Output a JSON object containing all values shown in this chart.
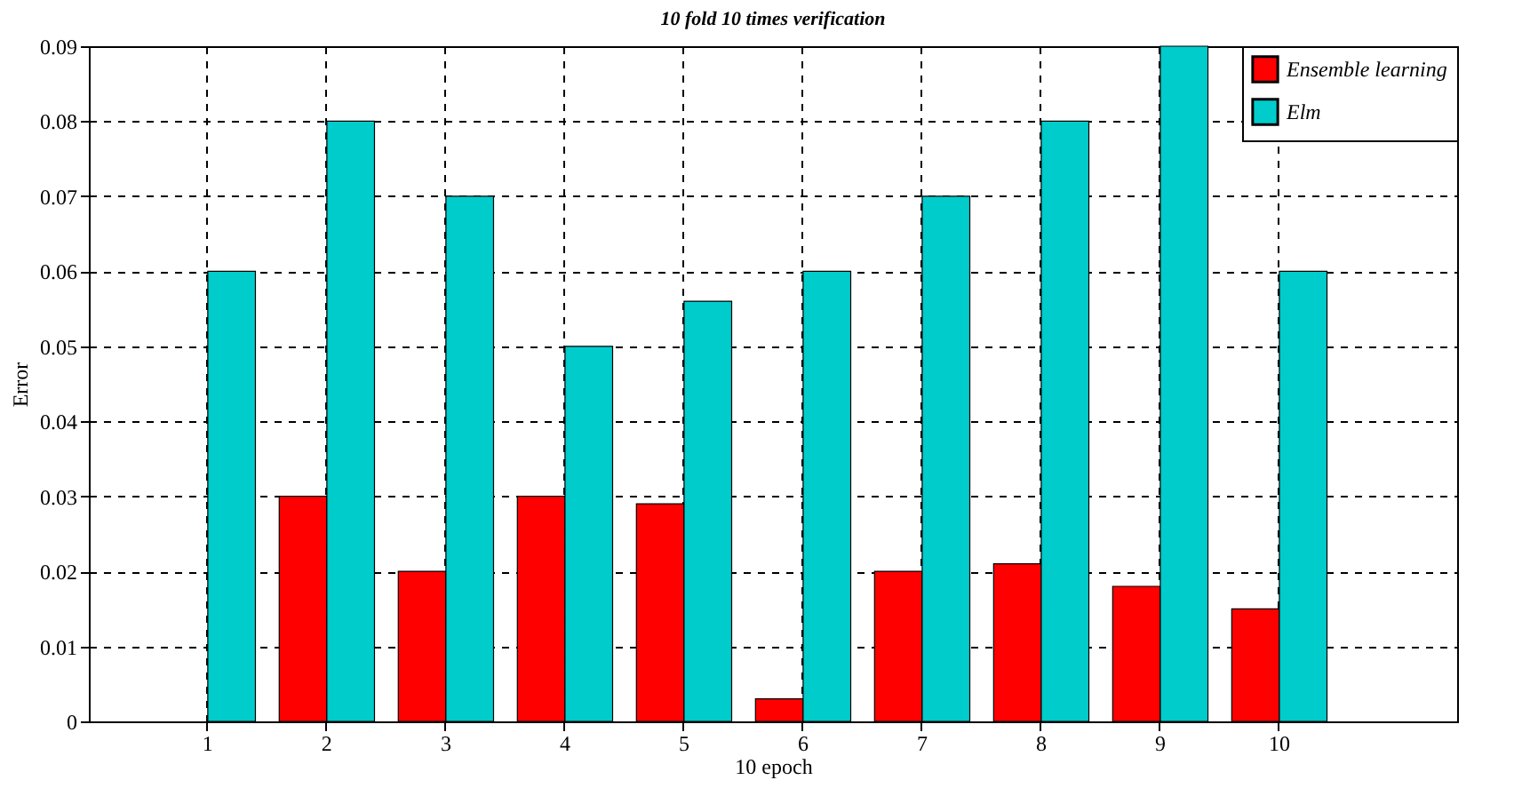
{
  "chart_data": {
    "type": "bar",
    "title": "10 fold 10 times verification",
    "xlabel": "10 epoch",
    "ylabel": "Error",
    "categories": [
      "1",
      "2",
      "3",
      "4",
      "5",
      "6",
      "7",
      "8",
      "9",
      "10"
    ],
    "series": [
      {
        "name": "Ensemble learning",
        "color": "#ff0000",
        "values": [
          0,
          0.03,
          0.02,
          0.03,
          0.029,
          0.003,
          0.02,
          0.021,
          0.018,
          0.015
        ]
      },
      {
        "name": "Elm",
        "color": "#00cccc",
        "values": [
          0.06,
          0.08,
          0.07,
          0.05,
          0.056,
          0.06,
          0.07,
          0.08,
          0.09,
          0.06
        ]
      }
    ],
    "ylim": [
      0,
      0.09
    ],
    "yticks": [
      0,
      0.01,
      0.02,
      0.03,
      0.04,
      0.05,
      0.06,
      0.07,
      0.08,
      0.09
    ],
    "grid": true,
    "legend": "top right"
  }
}
